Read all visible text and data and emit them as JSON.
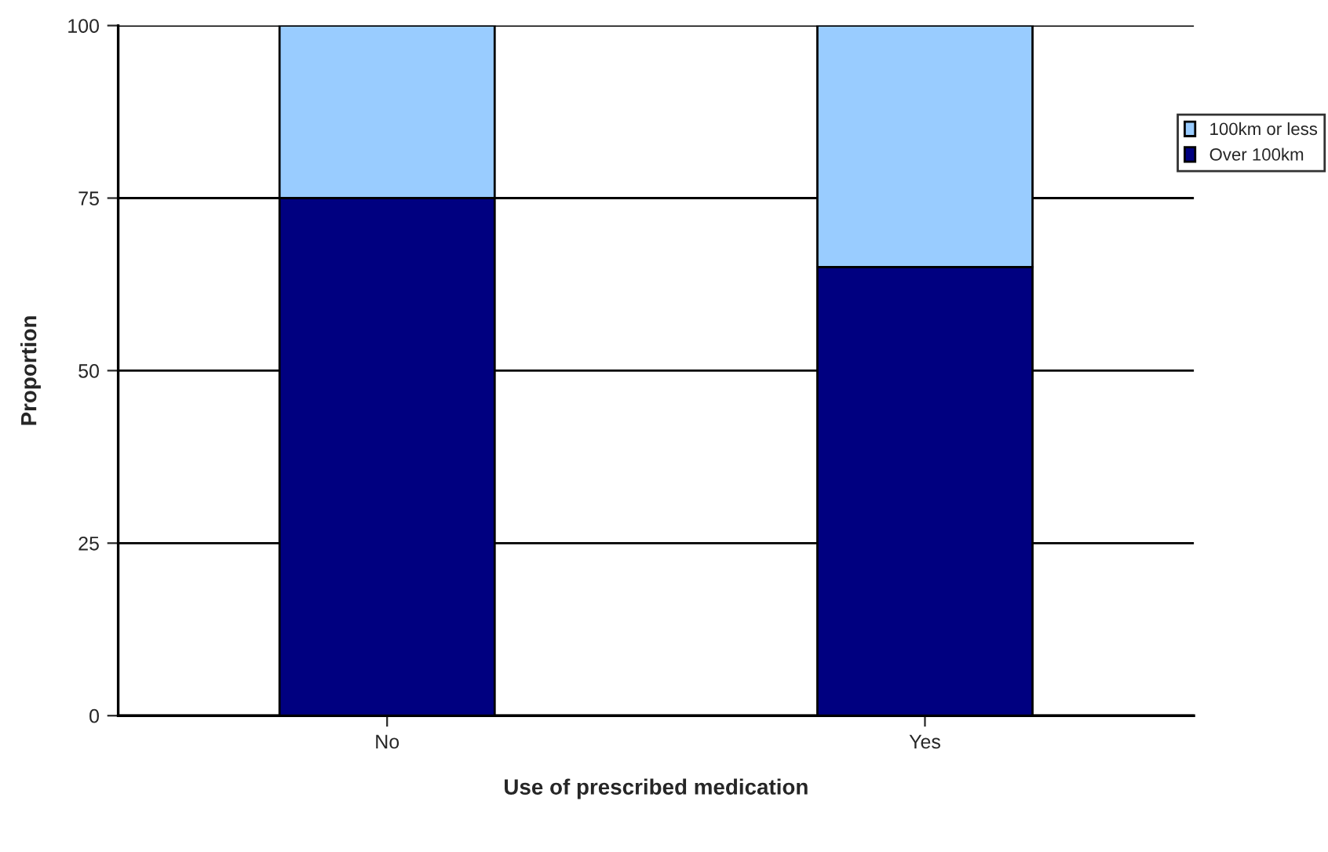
{
  "chart_data": {
    "type": "bar",
    "stacked": true,
    "xlabel": "Use of prescribed medication",
    "ylabel": "Proportion",
    "categories": [
      "No",
      "Yes"
    ],
    "series": [
      {
        "name": "Over 100km",
        "color": "#000080",
        "values": [
          75,
          65
        ]
      },
      {
        "name": "100km or less",
        "color": "#99ccff",
        "values": [
          25,
          35
        ]
      }
    ],
    "ylim": [
      0,
      100
    ],
    "yticks": [
      0,
      25,
      50,
      75,
      100
    ],
    "grid": "y",
    "legend": "right"
  }
}
